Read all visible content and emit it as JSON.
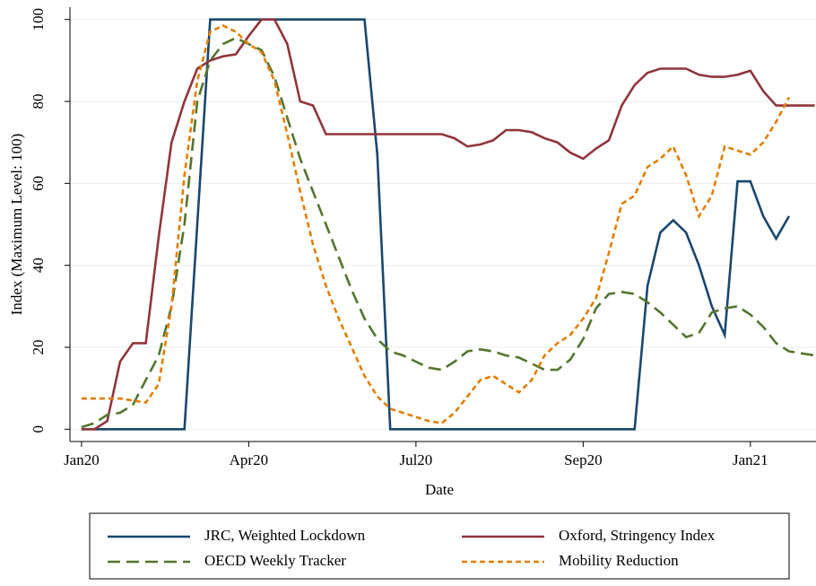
{
  "chart_data": {
    "type": "line",
    "x_label": "Date",
    "y_label": "Index (Maximum Level: 100)",
    "x": [
      0,
      1,
      2,
      3,
      4,
      5,
      6,
      7,
      8,
      9,
      10,
      11,
      12,
      13,
      14,
      15,
      16,
      17,
      18,
      19,
      20,
      21,
      22,
      23,
      24,
      25,
      26,
      27,
      28,
      29,
      30,
      31,
      32,
      33,
      34,
      35,
      36,
      37,
      38,
      39,
      40,
      41,
      42,
      43,
      44,
      45,
      46,
      47,
      48,
      49,
      50,
      51,
      52,
      53,
      54,
      55,
      56,
      57
    ],
    "xlim": [
      -0.9,
      57.1
    ],
    "xticks": [
      {
        "value": 0,
        "label": "Jan20"
      },
      {
        "value": 13,
        "label": "Apr20"
      },
      {
        "value": 26,
        "label": "Jul20"
      },
      {
        "value": 39,
        "label": "Sep20"
      },
      {
        "value": 52,
        "label": "Jan21"
      }
    ],
    "ylim": [
      -3,
      103
    ],
    "yticks": [
      0,
      20,
      40,
      60,
      80,
      100
    ],
    "grid": true,
    "series": [
      {
        "name": "JRC, Weighted Lockdown",
        "color": "#1a476f",
        "dash": "solid",
        "values": [
          0,
          0,
          0,
          0,
          0,
          0,
          0,
          0,
          0,
          50,
          100,
          100,
          100,
          100,
          100,
          100,
          100,
          100,
          100,
          100,
          100,
          100,
          100,
          67,
          0,
          0,
          0,
          0,
          0,
          0,
          0,
          0,
          0,
          0,
          0,
          0,
          0,
          0,
          0,
          0,
          0,
          0,
          0,
          0,
          35,
          48,
          51,
          48,
          40,
          30,
          23,
          60.5,
          60.5,
          52,
          46.5,
          52,
          null,
          null
        ]
      },
      {
        "name": "Oxford, Stringency Index",
        "color": "#90353b",
        "dash": "solid",
        "values": [
          0,
          0,
          2,
          16.5,
          21,
          21,
          47,
          70,
          80,
          88,
          90,
          91,
          91.5,
          96,
          100,
          100,
          94,
          80,
          79,
          72,
          72,
          72,
          72,
          72,
          72,
          72,
          72,
          72,
          72,
          71,
          69,
          69.5,
          70.5,
          73,
          73,
          72.5,
          71,
          70,
          67.5,
          66,
          68.5,
          70.5,
          79,
          84,
          87,
          88,
          88,
          88,
          86.5,
          86,
          86,
          86.5,
          87.5,
          82.5,
          79,
          79,
          79,
          79
        ]
      },
      {
        "name": "OECD Weekly Tracker",
        "color": "#55752f",
        "dash": "long",
        "values": [
          0.5,
          1.5,
          3.5,
          4,
          6,
          12,
          18,
          30,
          50,
          80,
          90,
          94,
          95.5,
          94,
          92.5,
          86,
          76,
          66,
          58,
          50,
          42,
          34,
          27,
          22,
          19,
          18,
          16.5,
          15,
          14.5,
          16.5,
          19,
          19.5,
          19,
          18,
          17.5,
          16,
          14.5,
          14.5,
          17,
          22,
          29.5,
          33,
          33.5,
          33,
          31,
          28.5,
          25.5,
          22.5,
          23.5,
          28.5,
          29.5,
          30,
          28,
          25,
          21,
          19,
          18.5,
          18
        ]
      },
      {
        "name": "Mobility Reduction",
        "color": "#e37e00",
        "dash": "short",
        "values": [
          7.5,
          7.5,
          7.5,
          7.5,
          7,
          6.5,
          11,
          30,
          62,
          85,
          97,
          98.5,
          97,
          94,
          92,
          85,
          72,
          58,
          45,
          35,
          27,
          20,
          13,
          8,
          5,
          4,
          3,
          2,
          1.5,
          4,
          8,
          12,
          13,
          11,
          9,
          12,
          18,
          21,
          23,
          27,
          32,
          43,
          55,
          57,
          64,
          66,
          69,
          62,
          52,
          57,
          69,
          68,
          67,
          70,
          75,
          81,
          null,
          null
        ]
      }
    ]
  }
}
